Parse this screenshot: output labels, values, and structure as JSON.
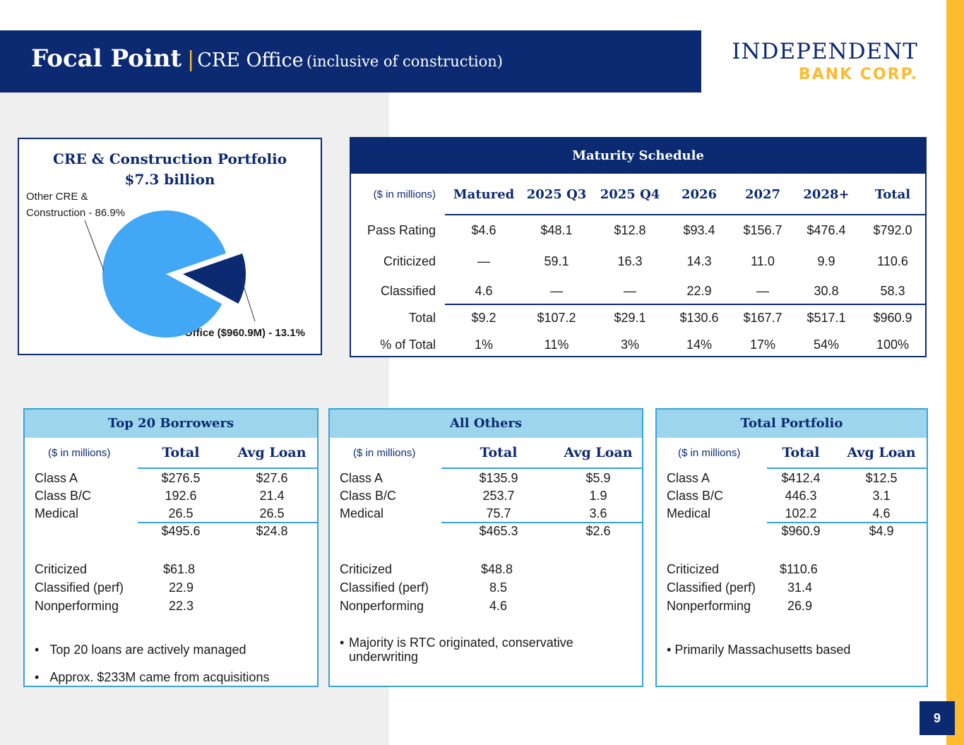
{
  "header": {
    "title_bold": "Focal Point",
    "separator": "|",
    "title_main": "CRE Office",
    "title_paren": "(inclusive of construction)"
  },
  "logo": {
    "line1": "INDEPENDENT",
    "line2": "BANK CORP."
  },
  "colors": {
    "navy": "#0c2a72",
    "gold": "#fdbb30",
    "light_blue": "#9dd6ec",
    "pie_main": "#42a8f5",
    "pie_office": "#0c2a72"
  },
  "pie": {
    "title_line1": "CRE & Construction Portfolio",
    "title_line2": "$7.3 billion",
    "label_other_line1": "Other CRE &",
    "label_other_line2": "Construction - 86.9%",
    "label_office": "Office ($960.9M) - 13.1%",
    "chart_data": {
      "type": "pie",
      "slices": [
        {
          "label": "Other CRE & Construction",
          "value": 86.9
        },
        {
          "label": "Office ($960.9M)",
          "value": 13.1
        }
      ]
    }
  },
  "maturity": {
    "title": "Maturity Schedule",
    "units": "($ in millions)",
    "columns": [
      "Matured",
      "2025 Q3",
      "2025 Q4",
      "2026",
      "2027",
      "2028+",
      "Total"
    ],
    "rows": [
      {
        "label": "Pass Rating",
        "values": [
          "$4.6",
          "$48.1",
          "$12.8",
          "$93.4",
          "$156.7",
          "$476.4",
          "$792.0"
        ]
      },
      {
        "label": "Criticized",
        "values": [
          "—",
          "59.1",
          "16.3",
          "14.3",
          "11.0",
          "9.9",
          "110.6"
        ]
      },
      {
        "label": "Classified",
        "values": [
          "4.6",
          "—",
          "—",
          "22.9",
          "—",
          "30.8",
          "58.3"
        ]
      },
      {
        "label": "Total",
        "values": [
          "$9.2",
          "$107.2",
          "$29.1",
          "$130.6",
          "$167.7",
          "$517.1",
          "$960.9"
        ]
      },
      {
        "label": "% of Total",
        "values": [
          "1%",
          "11%",
          "3%",
          "14%",
          "17%",
          "54%",
          "100%"
        ]
      }
    ]
  },
  "cards": [
    {
      "title": "Top 20 Borrowers",
      "units": "($ in millions)",
      "col1": "Total",
      "col2": "Avg Loan",
      "rows": [
        {
          "label": "Class A",
          "total": "$276.5",
          "avg": "$27.6"
        },
        {
          "label": "Class B/C",
          "total": "192.6",
          "avg": "21.4"
        },
        {
          "label": "Medical",
          "total": "26.5",
          "avg": "26.5"
        }
      ],
      "sum": {
        "total": "$495.6",
        "avg": "$24.8"
      },
      "risk": [
        {
          "label": "Criticized",
          "value": "$61.8"
        },
        {
          "label": "Classified (perf)",
          "value": "22.9"
        },
        {
          "label": "Nonperforming",
          "value": "22.3"
        }
      ],
      "bullets": [
        "Top 20 loans are actively managed",
        "Approx. $233M came from acquisitions"
      ]
    },
    {
      "title": "All Others",
      "units": "($ in millions)",
      "col1": "Total",
      "col2": "Avg Loan",
      "rows": [
        {
          "label": "Class A",
          "total": "$135.9",
          "avg": "$5.9"
        },
        {
          "label": "Class B/C",
          "total": "253.7",
          "avg": "1.9"
        },
        {
          "label": "Medical",
          "total": "75.7",
          "avg": "3.6"
        }
      ],
      "sum": {
        "total": "$465.3",
        "avg": "$2.6"
      },
      "risk": [
        {
          "label": "Criticized",
          "value": "$48.8"
        },
        {
          "label": "Classified (perf)",
          "value": "8.5"
        },
        {
          "label": "Nonperforming",
          "value": "4.6"
        }
      ],
      "bullets": [
        "Majority is RTC originated, conservative underwriting"
      ]
    },
    {
      "title": "Total Portfolio",
      "units": "($ in millions)",
      "col1": "Total",
      "col2": "Avg Loan",
      "rows": [
        {
          "label": "Class A",
          "total": "$412.4",
          "avg": "$12.5"
        },
        {
          "label": "Class B/C",
          "total": "446.3",
          "avg": "3.1"
        },
        {
          "label": "Medical",
          "total": "102.2",
          "avg": "4.6"
        }
      ],
      "sum": {
        "total": "$960.9",
        "avg": "$4.9"
      },
      "risk": [
        {
          "label": "Criticized",
          "value": "$110.6"
        },
        {
          "label": "Classified (perf)",
          "value": "31.4"
        },
        {
          "label": "Nonperforming",
          "value": "26.9"
        }
      ],
      "bullets": [
        "Primarily Massachusetts based"
      ]
    }
  ],
  "page_number": "9"
}
